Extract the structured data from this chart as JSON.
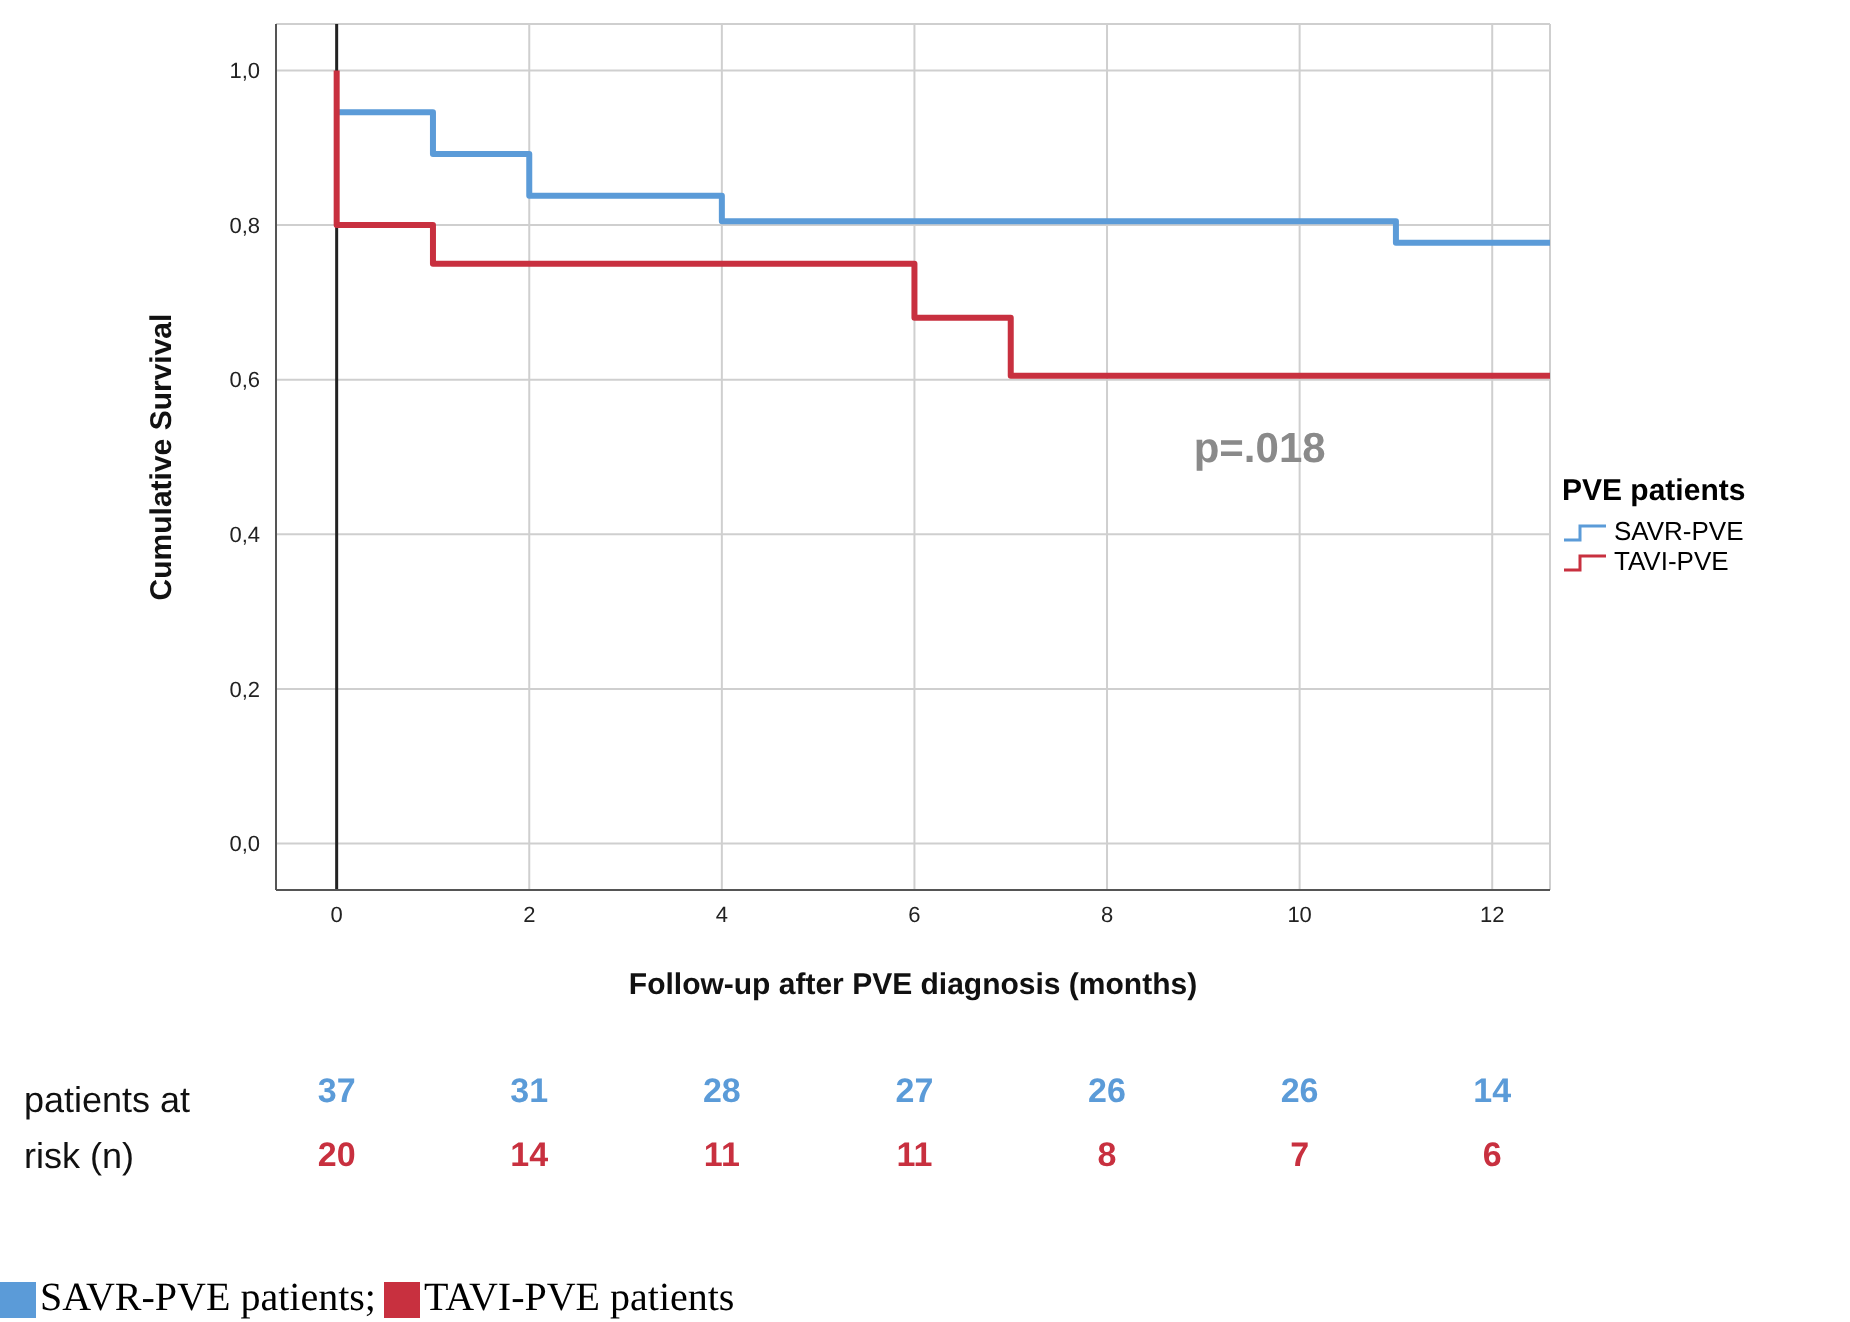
{
  "chart_data": {
    "type": "step",
    "xlabel": "Follow-up after PVE diagnosis (months)",
    "ylabel": "Cumulative Survival",
    "legend_title": "PVE patients",
    "series": [
      {
        "name": "SAVR-PVE",
        "color": "#5b9bd8",
        "x": [
          0,
          1,
          2,
          4,
          11,
          12.6
        ],
        "values": [
          0.946,
          0.892,
          0.838,
          0.805,
          0.777,
          0.777
        ]
      },
      {
        "name": "TAVI-PVE",
        "color": "#c8303f",
        "x": [
          0,
          0,
          1,
          6,
          7,
          12.6
        ],
        "values": [
          1,
          0.8,
          0.75,
          0.68,
          0.605,
          0.605
        ]
      }
    ],
    "xlim": [
      -0.63,
      12.6
    ],
    "xticks": [
      0,
      2,
      4,
      6,
      8,
      10,
      12
    ],
    "ylim": [
      -0.06,
      1.06
    ],
    "yticks": [
      {
        "value": 0,
        "label": "0,0"
      },
      {
        "value": 0.2,
        "label": "0,2"
      },
      {
        "value": 0.4,
        "label": "0,4"
      },
      {
        "value": 0.6,
        "label": "0,6"
      },
      {
        "value": 0.8,
        "label": "0,8"
      },
      {
        "value": 1,
        "label": "1,0"
      }
    ],
    "ref_lines": [
      {
        "axis": "x",
        "value": 0,
        "color": "#222222"
      }
    ],
    "grid": true,
    "legend": "right",
    "annotations": [
      "p=.018",
      "patients at risk (n)",
      "37",
      "31",
      "28",
      "27",
      "26",
      "26",
      "14",
      "20",
      "14",
      "11",
      "11",
      "8",
      "7",
      "6",
      "SAVR-PVE patients;",
      "TAVI-PVE patients"
    ]
  }
}
